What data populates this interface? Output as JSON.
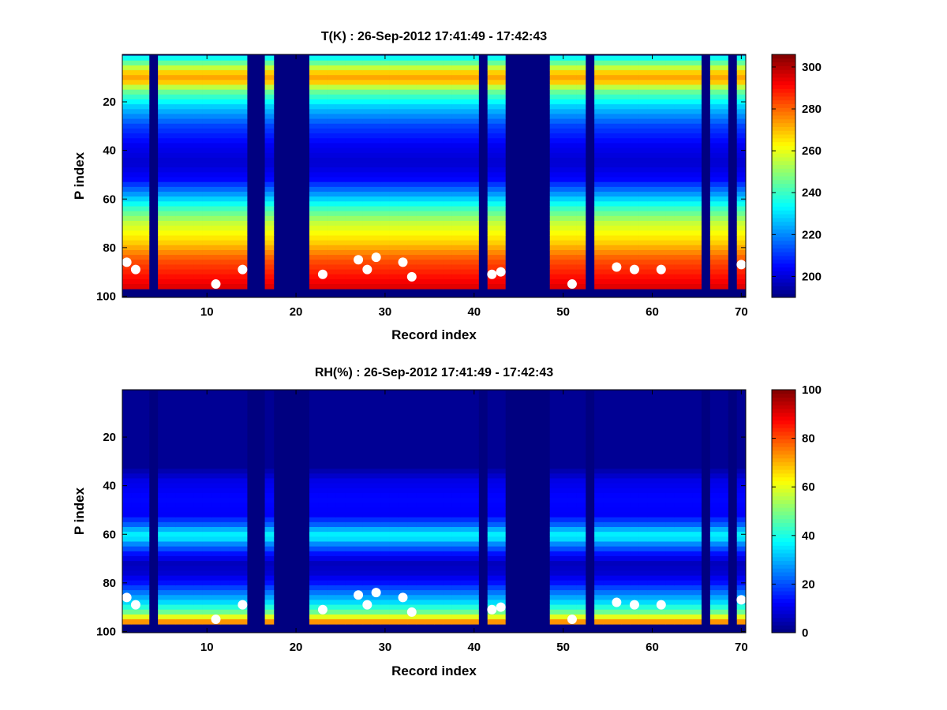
{
  "chart_data": [
    {
      "type": "heatmap",
      "title": "T(K) : 26-Sep-2012 17:41:49 - 17:42:43",
      "xlabel": "Record index",
      "ylabel": "P index",
      "xlim": [
        0.5,
        70.5
      ],
      "ylim": [
        0.5,
        100.5
      ],
      "y_reversed": true,
      "x_ticks": [
        "10",
        "20",
        "30",
        "40",
        "50",
        "60",
        "70"
      ],
      "y_ticks": [
        "20",
        "40",
        "60",
        "80",
        "100"
      ],
      "colorbar": {
        "range": [
          190,
          306
        ],
        "ticks": [
          "200",
          "220",
          "240",
          "260",
          "280",
          "300"
        ],
        "colormap": "jet"
      },
      "missing_records": [
        4,
        15,
        16,
        18,
        19,
        20,
        21,
        41,
        44,
        45,
        46,
        47,
        48,
        53,
        66,
        69
      ],
      "surface_pressure_index": [
        86,
        89,
        97,
        97,
        97,
        97,
        97,
        97,
        97,
        97,
        95,
        97,
        97,
        89,
        97,
        97,
        97,
        97,
        97,
        97,
        97,
        97,
        91,
        97,
        97,
        97,
        85,
        89,
        84,
        97,
        97,
        86,
        92,
        97,
        97,
        97,
        97,
        97,
        97,
        97,
        97,
        91,
        90,
        97,
        97,
        97,
        97,
        97,
        97,
        97,
        95,
        97,
        97,
        97,
        97,
        88,
        97,
        89,
        97,
        97,
        89,
        97,
        97,
        97,
        97,
        97,
        97,
        97,
        97,
        87
      ],
      "profile": {
        "p_index": [
          1,
          5,
          8,
          11,
          15,
          22,
          30,
          38,
          45,
          52,
          58,
          63,
          70,
          78,
          85,
          92,
          97
        ],
        "value": [
          230,
          250,
          268,
          275,
          248,
          228,
          212,
          203,
          199,
          205,
          222,
          238,
          256,
          268,
          282,
          290,
          296
        ]
      }
    },
    {
      "type": "heatmap",
      "title": "RH(%) : 26-Sep-2012 17:41:49 - 17:42:43",
      "xlabel": "Record index",
      "ylabel": "P index",
      "xlim": [
        0.5,
        70.5
      ],
      "ylim": [
        0.5,
        100.5
      ],
      "y_reversed": true,
      "x_ticks": [
        "10",
        "20",
        "30",
        "40",
        "50",
        "60",
        "70"
      ],
      "y_ticks": [
        "20",
        "40",
        "60",
        "80",
        "100"
      ],
      "colorbar": {
        "range": [
          0,
          100
        ],
        "ticks": [
          "0",
          "20",
          "40",
          "60",
          "80",
          "100"
        ],
        "colormap": "jet"
      },
      "missing_records": [
        4,
        15,
        16,
        18,
        19,
        20,
        21,
        41,
        44,
        45,
        46,
        47,
        48,
        53,
        66,
        69
      ],
      "surface_pressure_index": [
        86,
        89,
        97,
        97,
        97,
        97,
        97,
        97,
        97,
        97,
        95,
        97,
        97,
        89,
        97,
        97,
        97,
        97,
        97,
        97,
        97,
        97,
        91,
        97,
        97,
        97,
        85,
        89,
        84,
        97,
        97,
        86,
        92,
        97,
        97,
        97,
        97,
        97,
        97,
        97,
        97,
        91,
        90,
        97,
        97,
        97,
        97,
        97,
        97,
        97,
        95,
        97,
        97,
        97,
        97,
        88,
        97,
        89,
        97,
        97,
        89,
        97,
        97,
        97,
        97,
        97,
        97,
        97,
        97,
        87
      ],
      "profile": {
        "p_index": [
          1,
          32,
          38,
          45,
          52,
          56,
          59,
          61,
          64,
          68,
          72,
          76,
          80,
          84,
          88,
          92,
          95,
          97
        ],
        "value": [
          2,
          2,
          10,
          13,
          12,
          22,
          34,
          38,
          26,
          14,
          6,
          8,
          14,
          24,
          34,
          48,
          66,
          80
        ]
      }
    }
  ]
}
